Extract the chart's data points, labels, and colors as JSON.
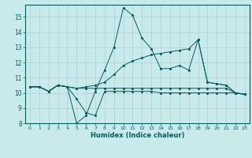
{
  "xlabel": "Humidex (Indice chaleur)",
  "background_color": "#c8eaea",
  "line_color": "#006060",
  "grid_color": "#b0d0d0",
  "xlim": [
    -0.5,
    23.5
  ],
  "ylim": [
    8,
    15.8
  ],
  "yticks": [
    8,
    9,
    10,
    11,
    12,
    13,
    14,
    15
  ],
  "xticks": [
    0,
    1,
    2,
    3,
    4,
    5,
    6,
    7,
    8,
    9,
    10,
    11,
    12,
    13,
    14,
    15,
    16,
    17,
    18,
    19,
    20,
    21,
    22,
    23
  ],
  "line1_x": [
    0,
    1,
    2,
    3,
    4,
    5,
    6,
    7,
    8,
    9,
    10,
    11,
    12,
    13,
    14,
    15,
    16,
    17,
    18,
    19,
    20,
    21,
    22,
    23
  ],
  "line1_y": [
    10.4,
    10.4,
    10.1,
    10.5,
    10.4,
    9.6,
    8.7,
    8.5,
    10.1,
    10.1,
    10.1,
    10.1,
    10.1,
    10.1,
    10.0,
    10.0,
    10.0,
    10.0,
    10.0,
    10.0,
    10.0,
    10.0,
    10.0,
    9.9
  ],
  "line2_x": [
    0,
    1,
    2,
    3,
    4,
    5,
    6,
    7,
    8,
    9,
    10,
    11,
    12,
    13,
    14,
    15,
    16,
    17,
    18,
    19,
    20,
    21,
    22,
    23
  ],
  "line2_y": [
    10.4,
    10.4,
    10.1,
    10.5,
    10.4,
    8.0,
    8.5,
    10.1,
    11.5,
    13.0,
    15.6,
    15.1,
    13.6,
    12.9,
    11.6,
    11.6,
    11.8,
    11.5,
    13.5,
    10.7,
    10.6,
    10.5,
    10.0,
    9.9
  ],
  "line3_x": [
    0,
    1,
    2,
    3,
    4,
    5,
    6,
    7,
    8,
    9,
    10,
    11,
    12,
    13,
    14,
    15,
    16,
    17,
    18,
    19,
    20,
    21,
    22,
    23
  ],
  "line3_y": [
    10.4,
    10.4,
    10.1,
    10.5,
    10.4,
    10.3,
    10.4,
    10.5,
    10.7,
    11.2,
    11.8,
    12.1,
    12.3,
    12.5,
    12.6,
    12.7,
    12.8,
    12.9,
    13.5,
    10.7,
    10.6,
    10.5,
    10.0,
    9.9
  ],
  "line4_x": [
    0,
    1,
    2,
    3,
    4,
    5,
    6,
    7,
    8,
    9,
    10,
    11,
    12,
    13,
    14,
    15,
    16,
    17,
    18,
    19,
    20,
    21,
    22,
    23
  ],
  "line4_y": [
    10.4,
    10.4,
    10.1,
    10.5,
    10.4,
    10.3,
    10.3,
    10.3,
    10.3,
    10.3,
    10.3,
    10.3,
    10.3,
    10.3,
    10.3,
    10.3,
    10.3,
    10.3,
    10.3,
    10.3,
    10.3,
    10.3,
    10.0,
    9.9
  ]
}
